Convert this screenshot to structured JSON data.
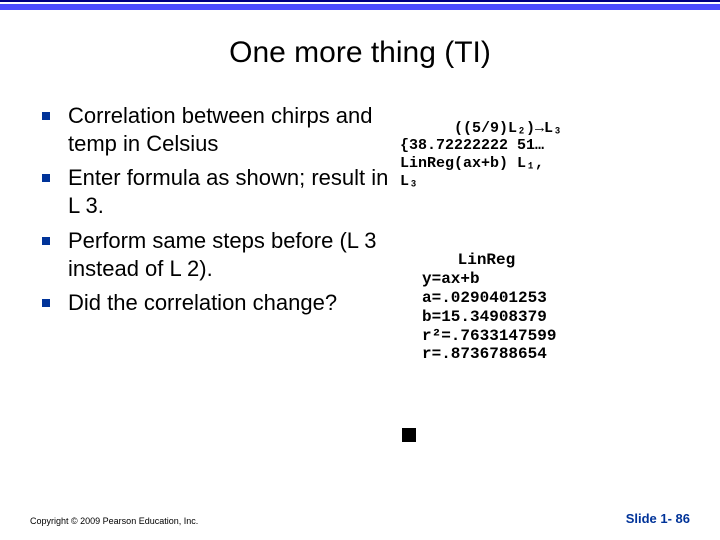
{
  "title": "One more thing (TI)",
  "bullets": {
    "b1": "Correlation between chirps and temp in Celsius",
    "b2": "Enter formula as shown; result in L 3.",
    "b3": "Perform same steps before (L 3 instead of L 2).",
    "b4": "Did the correlation change?"
  },
  "calc1": {
    "line1": "((5/9)L₂)→L₃",
    "line2": "{38.72222222 51…",
    "line3": "LinReg(ax+b) L₁,",
    "line4": "L₃"
  },
  "calc2": {
    "line1": "LinReg",
    "line2": "y=ax+b",
    "line3": "a=.0290401253",
    "line4": "b=15.34908379",
    "line5": "r²=.7633147599",
    "line6": "r=.8736788654"
  },
  "footer": {
    "copyright": "Copyright © 2009 Pearson Education, Inc.",
    "slide": "Slide 1- 86"
  }
}
